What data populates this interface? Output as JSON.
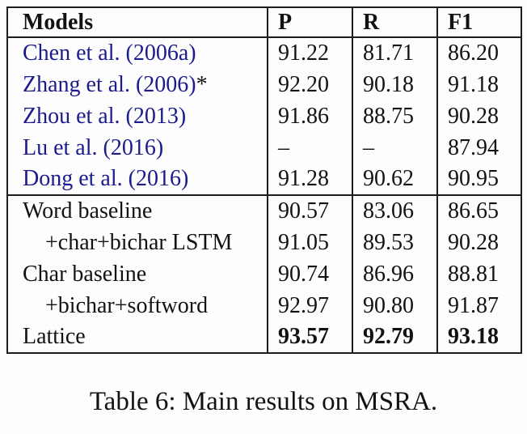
{
  "caption": "Table 6: Main results on MSRA.",
  "colors": {
    "citation_text": "#1b1b8e",
    "text": "#121212",
    "border": "#1d1d1d"
  },
  "table": {
    "headers": [
      "Models",
      "P",
      "R",
      "F1"
    ],
    "groups": [
      {
        "rows": [
          {
            "model": "Chen et al. (2006a)",
            "cite": true,
            "p": "91.22",
            "r": "81.71",
            "f1": "86.20"
          },
          {
            "model": "Zhang et al. (2006)",
            "suffix": "*",
            "cite": true,
            "p": "92.20",
            "r": "90.18",
            "f1": "91.18"
          },
          {
            "model": "Zhou et al. (2013)",
            "cite": true,
            "p": "91.86",
            "r": "88.75",
            "f1": "90.28"
          },
          {
            "model": "Lu et al. (2016)",
            "cite": true,
            "p": "–",
            "r": "–",
            "f1": "87.94"
          },
          {
            "model": "Dong et al. (2016)",
            "cite": true,
            "p": "91.28",
            "r": "90.62",
            "f1": "90.95"
          }
        ]
      },
      {
        "rows": [
          {
            "model": "Word baseline",
            "p": "90.57",
            "r": "83.06",
            "f1": "86.65"
          },
          {
            "model": "+char+bichar LSTM",
            "indent": true,
            "p": "91.05",
            "r": "89.53",
            "f1": "90.28"
          },
          {
            "model": "Char baseline",
            "p": "90.74",
            "r": "86.96",
            "f1": "88.81"
          },
          {
            "model": "+bichar+softword",
            "indent": true,
            "p": "92.97",
            "r": "90.80",
            "f1": "91.87"
          },
          {
            "model": "Lattice",
            "bold_values": true,
            "p": "93.57",
            "r": "92.79",
            "f1": "93.18"
          }
        ]
      }
    ]
  }
}
